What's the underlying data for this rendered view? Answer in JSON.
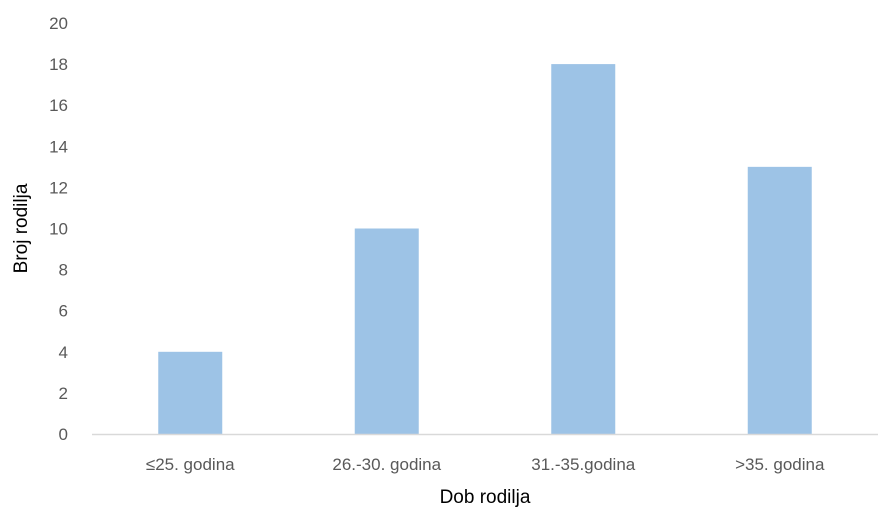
{
  "chart_data": {
    "type": "bar",
    "categories": [
      "≤25. godina",
      "26.-30. godina",
      "31.-35.godina",
      ">35. godina"
    ],
    "values": [
      4,
      10,
      18,
      13
    ],
    "xlabel": "Dob rodilja",
    "ylabel": "Broj rodilja",
    "ylim": [
      0,
      20
    ],
    "yticks": [
      0,
      2,
      4,
      6,
      8,
      10,
      12,
      14,
      16,
      18,
      20
    ],
    "grid": false,
    "legend": "none",
    "colors": {
      "bar": "#9DC3E6",
      "axis": "#D9D9D9"
    }
  }
}
